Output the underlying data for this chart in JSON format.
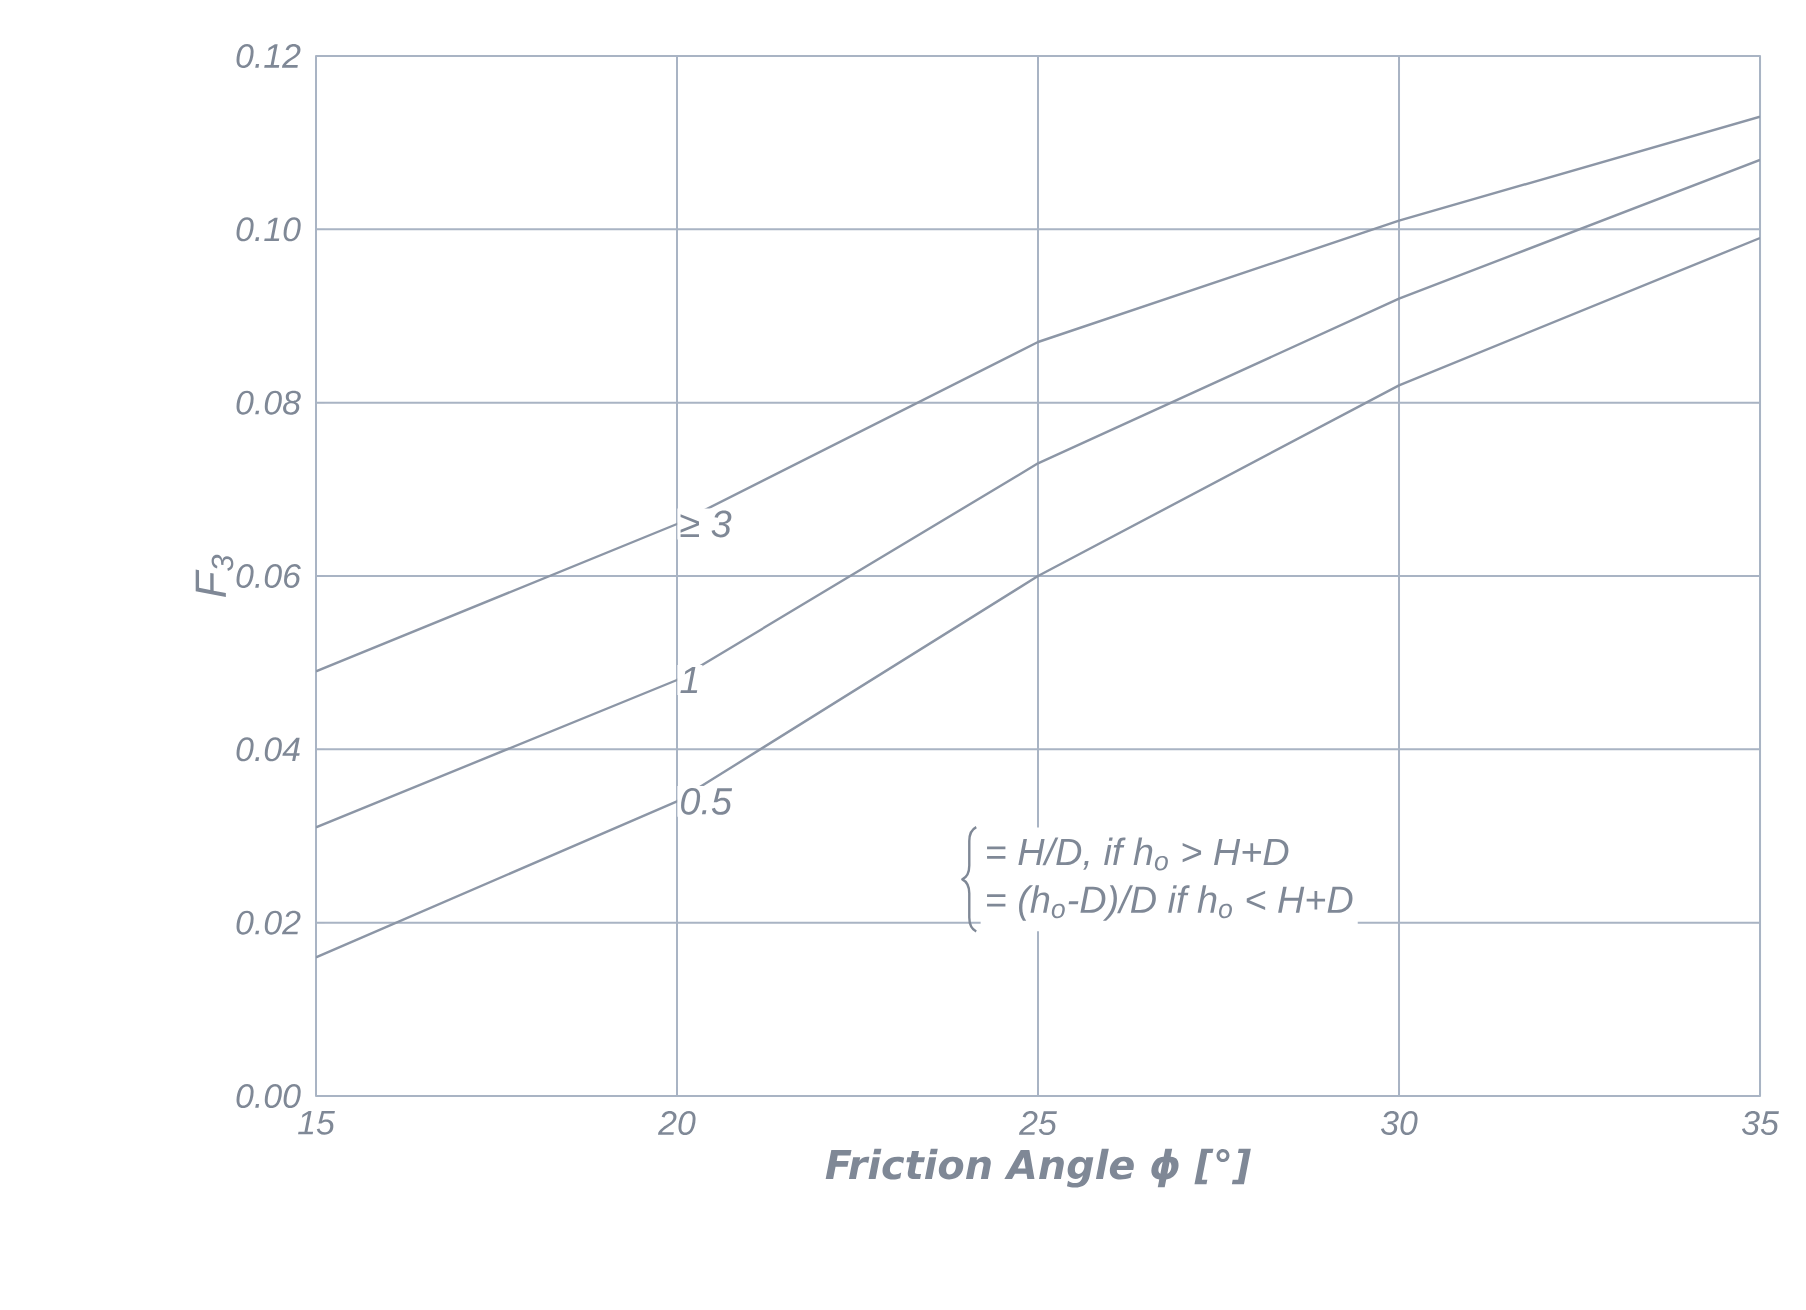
{
  "chart_data": {
    "type": "line",
    "xlabel": "Friction Angle  ϕ [°]",
    "ylabel": "F$_{3}$",
    "x": [
      15,
      20,
      25,
      30,
      35
    ],
    "series": [
      {
        "name": "≥ 3",
        "color": "#8c96a6",
        "values": [
          0.049,
          0.066,
          0.087,
          0.101,
          0.113
        ]
      },
      {
        "name": "1",
        "color": "#8c96a6",
        "values": [
          0.031,
          0.048,
          0.073,
          0.092,
          0.108
        ]
      },
      {
        "name": "0.5",
        "color": "#8c96a6",
        "values": [
          0.016,
          0.034,
          0.06,
          0.082,
          0.099
        ]
      }
    ],
    "annotations": [
      "= H/D, if h$_{o}$  >  H+D",
      "= (h$_{o}$-D)/D if h$_{o}$ <  H+D"
    ],
    "xlim": [
      15,
      35
    ],
    "xticks": [
      15,
      20,
      25,
      30,
      35
    ],
    "ylim": [
      0,
      0.12
    ],
    "yticks": [
      {
        "value": 0,
        "label": "0.00"
      },
      {
        "value": 0.02,
        "label": "0.02"
      },
      {
        "value": 0.04,
        "label": "0.04"
      },
      {
        "value": 0.06,
        "label": "0.06"
      },
      {
        "value": 0.08,
        "label": "0.08"
      },
      {
        "value": 0.1,
        "label": "0.10"
      },
      {
        "value": 0.12,
        "label": "0.12"
      }
    ],
    "grid": true,
    "legend": false,
    "marker": "none",
    "line_style": "solid"
  }
}
